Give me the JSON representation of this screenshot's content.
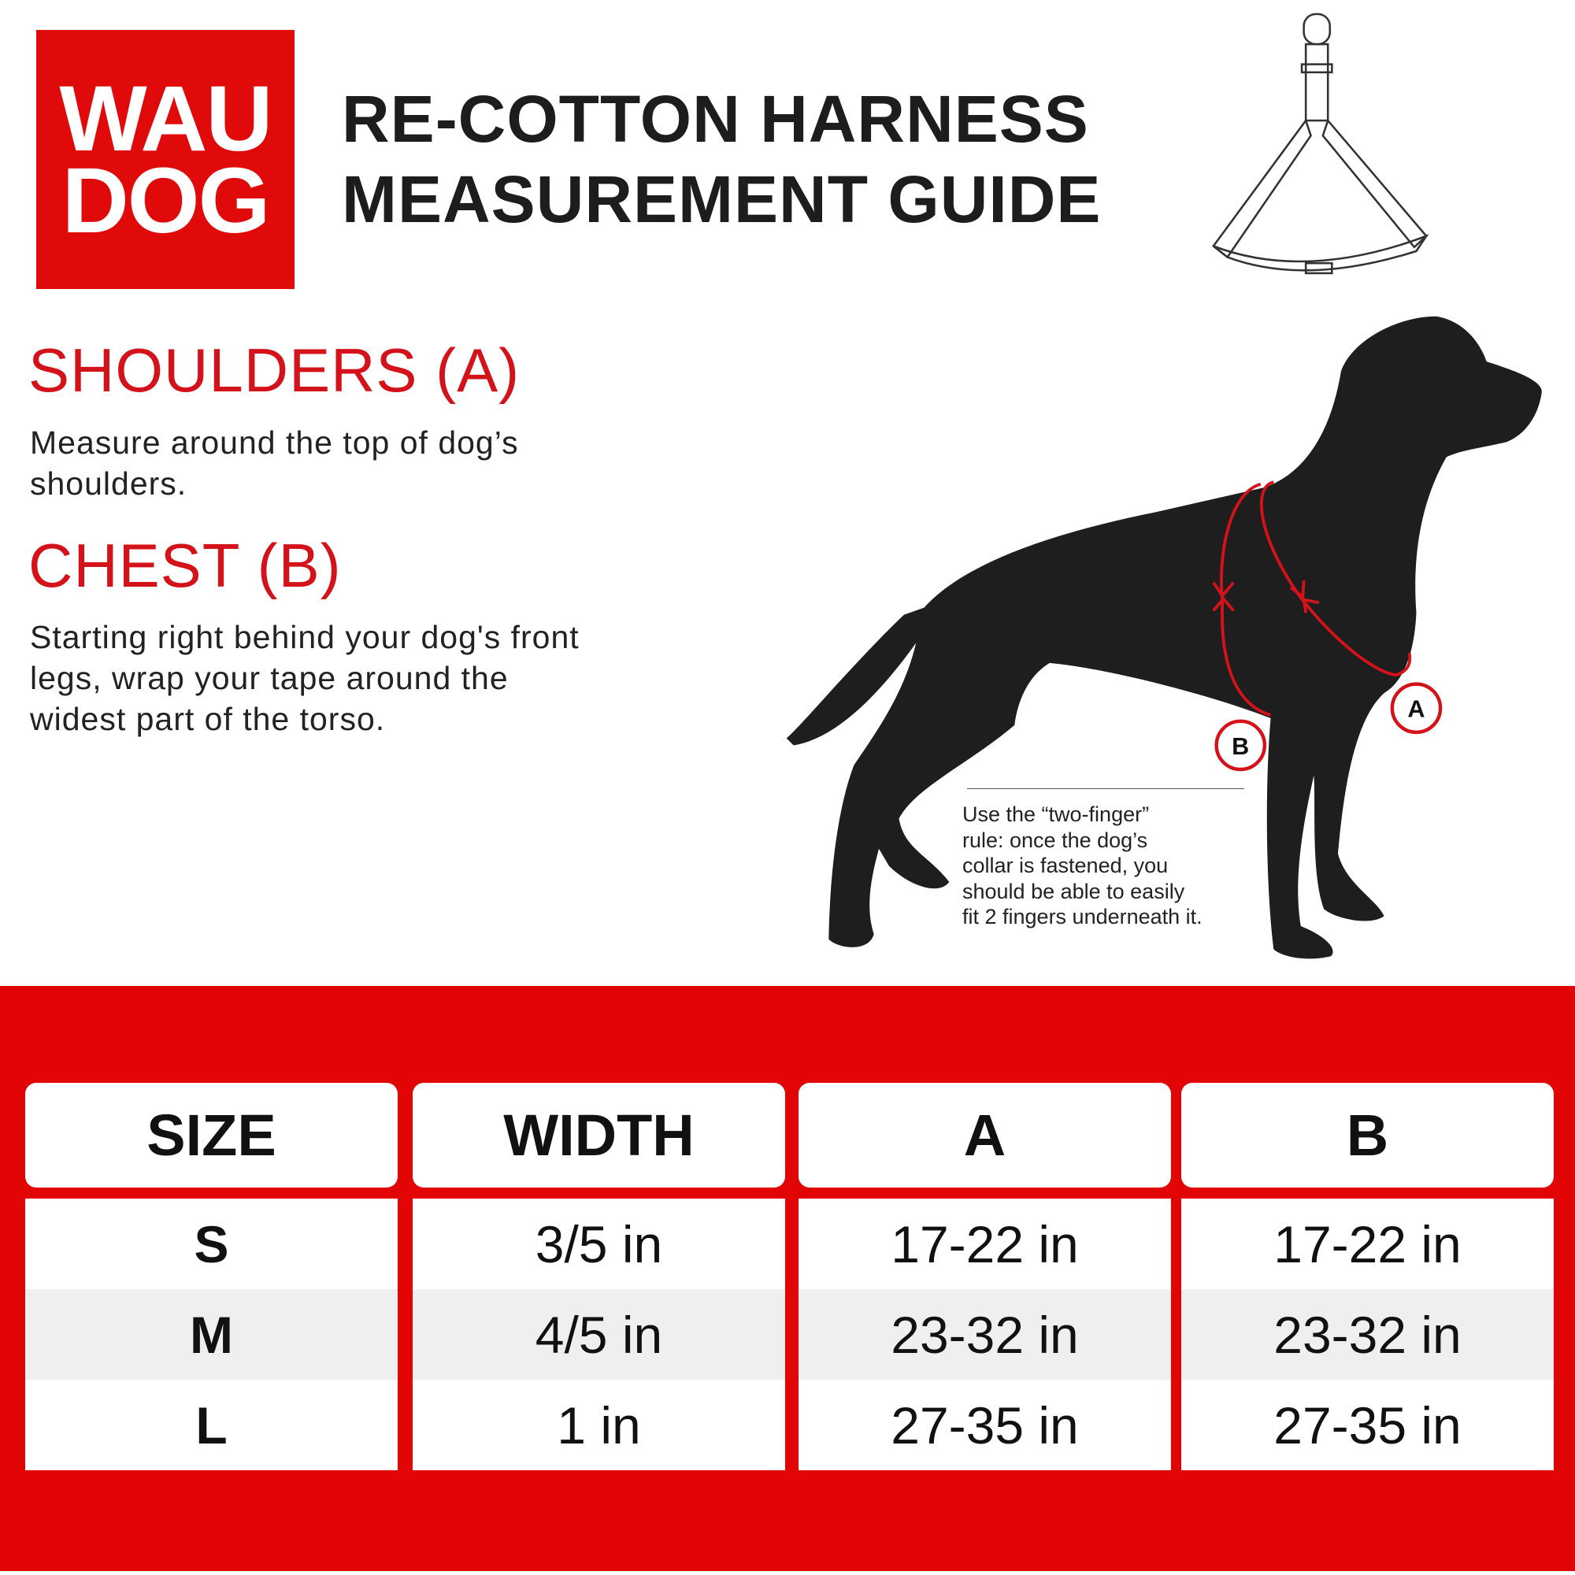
{
  "brand": {
    "logo_line1": "WAU",
    "logo_line2": "DOG",
    "color": "#e10a0a"
  },
  "title": {
    "line1": "RE-COTTON HARNESS",
    "line2": "MEASUREMENT GUIDE"
  },
  "sections": [
    {
      "heading": "SHOULDERS (A)",
      "text_lines": [
        "Measure around the top of dog’s",
        "shoulders."
      ]
    },
    {
      "heading": "CHEST (B)",
      "text_lines": [
        "Starting right behind your dog's front",
        "legs, wrap your tape around the",
        "widest part of the torso."
      ]
    }
  ],
  "diagram": {
    "label_a": "A",
    "label_b": "B",
    "icons": [
      "harness-icon",
      "dog-silhouette"
    ],
    "note_lines": [
      "Use the “two-finger”",
      "rule: once the dog’s",
      "collar is fastened, you",
      "should be able to easily",
      "fit 2 fingers underneath it."
    ]
  },
  "table": {
    "headers": [
      "SIZE",
      "WIDTH",
      "A",
      "B"
    ],
    "rows": [
      [
        "S",
        "3/5 in",
        "17-22 in",
        "17-22 in"
      ],
      [
        "M",
        "4/5 in",
        "23-32 in",
        "23-32 in"
      ],
      [
        "L",
        "1 in",
        "27-35 in",
        "27-35 in"
      ]
    ],
    "band_color": "#e10505",
    "alt_row_color": "#efefef"
  }
}
